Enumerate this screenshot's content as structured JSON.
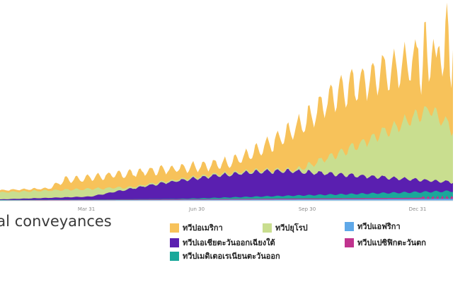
{
  "caption": "nal conveyances",
  "chart_data": {
    "type": "area",
    "stacked": true,
    "title": "",
    "xlabel": "",
    "ylabel": "",
    "x_ticks": [
      "Mar 31",
      "Jun 30",
      "Sep 30",
      "Dec 31"
    ],
    "grid": false,
    "legend_position": "bottom-right",
    "series": [
      {
        "name": "ทวีปแอฟริกา",
        "color": "#5fa8e8"
      },
      {
        "name": "ทวีปแปซิฟิกตะวันตก",
        "color": "#c0338e"
      },
      {
        "name": "ทวีปเมดิเตอเรเนียนตะวันออก",
        "color": "#1aa89a"
      },
      {
        "name": "ทวีปเอเชียตะวันออกเฉียงใต้",
        "color": "#5a1fb0"
      },
      {
        "name": "ทวีปยุโรป",
        "color": "#c9de8f"
      },
      {
        "name": "ทวีปอเมริกา",
        "color": "#f7c25a"
      }
    ]
  },
  "legend": [
    {
      "label": "ทวีปอเมริกา",
      "color": "#f7c25a"
    },
    {
      "label": "ทวีปยุโรป",
      "color": "#c9de8f"
    },
    {
      "label": "ทวีปแอฟริกา",
      "color": "#5fa8e8"
    },
    {
      "label": "ทวีปเอเชียตะวันออกเฉียงใต้",
      "color": "#5a1fb0"
    },
    {
      "label": "ทวีปแปซิฟิกตะวันตก",
      "color": "#c0338e"
    },
    {
      "label": "ทวีปเมดิเตอเรเนียนตะวันออก",
      "color": "#1aa89a"
    }
  ]
}
